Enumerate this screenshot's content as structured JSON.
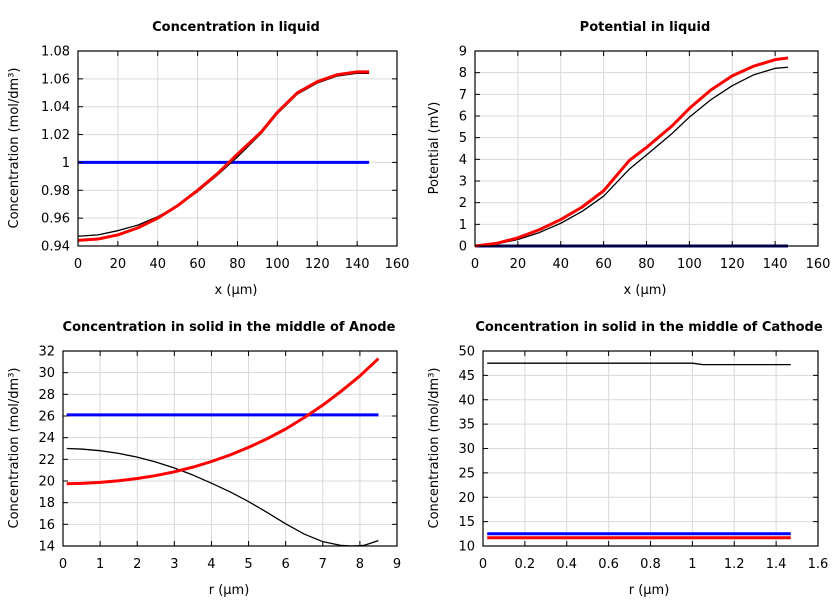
{
  "chart_data": [
    {
      "type": "line",
      "title": "Concentration in liquid",
      "xlabel": "x (µm)",
      "ylabel": "Concentration (mol/dm³)",
      "xlim": [
        0,
        160
      ],
      "ylim": [
        0.94,
        1.08
      ],
      "xticks": [
        0,
        20,
        40,
        60,
        80,
        100,
        120,
        140,
        160
      ],
      "yticks": [
        0.94,
        0.96,
        0.98,
        1,
        1.02,
        1.04,
        1.06,
        1.08
      ],
      "ytick_labels": [
        "0.94",
        "0.96",
        "0.98",
        "1",
        "1.02",
        "1.04",
        "1.06",
        "1.08"
      ],
      "grid": true,
      "series": [
        {
          "color": "#0000ff",
          "width": 3,
          "x": [
            0,
            146
          ],
          "y": [
            1.0,
            1.0
          ]
        },
        {
          "color": "#000000",
          "width": 1.3,
          "x": [
            0,
            10,
            20,
            30,
            40,
            50,
            60,
            70,
            80,
            92,
            100,
            110,
            120,
            130,
            140,
            146
          ],
          "y": [
            0.947,
            0.948,
            0.951,
            0.955,
            0.961,
            0.969,
            0.979,
            0.991,
            1.004,
            1.021,
            1.035,
            1.049,
            1.057,
            1.062,
            1.064,
            1.064
          ]
        },
        {
          "color": "#ff0000",
          "width": 3,
          "x": [
            0,
            10,
            20,
            30,
            40,
            50,
            60,
            70,
            80,
            92,
            100,
            110,
            120,
            130,
            140,
            146
          ],
          "y": [
            0.944,
            0.945,
            0.948,
            0.953,
            0.96,
            0.969,
            0.98,
            0.992,
            1.006,
            1.022,
            1.036,
            1.05,
            1.058,
            1.063,
            1.065,
            1.065
          ]
        }
      ]
    },
    {
      "type": "line",
      "title": "Potential in liquid",
      "xlabel": "x (µm)",
      "ylabel": "Potential (mV)",
      "xlim": [
        0,
        160
      ],
      "ylim": [
        0,
        9
      ],
      "xticks": [
        0,
        20,
        40,
        60,
        80,
        100,
        120,
        140,
        160
      ],
      "yticks": [
        0,
        1,
        2,
        3,
        4,
        5,
        6,
        7,
        8,
        9
      ],
      "ytick_labels": [
        "0",
        "1",
        "2",
        "3",
        "4",
        "5",
        "6",
        "7",
        "8",
        "9"
      ],
      "grid": true,
      "series": [
        {
          "color": "#000080",
          "width": 3,
          "x": [
            0,
            146
          ],
          "y": [
            0,
            0
          ]
        },
        {
          "color": "#000000",
          "width": 1.3,
          "x": [
            0,
            10,
            20,
            30,
            40,
            50,
            60,
            72,
            80,
            92,
            100,
            110,
            120,
            130,
            140,
            146
          ],
          "y": [
            0,
            0.09,
            0.3,
            0.62,
            1.05,
            1.6,
            2.3,
            3.55,
            4.2,
            5.2,
            5.95,
            6.75,
            7.4,
            7.9,
            8.2,
            8.25
          ]
        },
        {
          "color": "#ff0000",
          "width": 3,
          "x": [
            0,
            10,
            20,
            30,
            40,
            50,
            60,
            72,
            80,
            92,
            100,
            110,
            120,
            130,
            140,
            146
          ],
          "y": [
            0,
            0.12,
            0.38,
            0.75,
            1.22,
            1.8,
            2.55,
            3.95,
            4.55,
            5.55,
            6.35,
            7.2,
            7.85,
            8.3,
            8.6,
            8.68
          ]
        }
      ]
    },
    {
      "type": "line",
      "title": "Concentration in solid in the middle of Anode",
      "xlabel": "r (µm)",
      "ylabel": "Concentration (mol/dm³)",
      "xlim": [
        0,
        9
      ],
      "ylim": [
        14,
        32
      ],
      "xticks": [
        0,
        1,
        2,
        3,
        4,
        5,
        6,
        7,
        8,
        9
      ],
      "yticks": [
        14,
        16,
        18,
        20,
        22,
        24,
        26,
        28,
        30,
        32
      ],
      "ytick_labels": [
        "14",
        "16",
        "18",
        "20",
        "22",
        "24",
        "26",
        "28",
        "30",
        "32"
      ],
      "grid": true,
      "series": [
        {
          "color": "#0000ff",
          "width": 3,
          "x": [
            0.1,
            8.5
          ],
          "y": [
            26.1,
            26.1
          ]
        },
        {
          "color": "#000000",
          "width": 1.3,
          "x": [
            0.1,
            0.5,
            1,
            1.5,
            2,
            2.5,
            3,
            3.5,
            4,
            4.5,
            5,
            5.5,
            6,
            6.5,
            7,
            7.5,
            7.8,
            8.1,
            8.5
          ],
          "y": [
            23.0,
            22.95,
            22.8,
            22.55,
            22.2,
            21.75,
            21.2,
            20.55,
            19.8,
            19.0,
            18.1,
            17.1,
            16.05,
            15.1,
            14.4,
            14.05,
            14.0,
            14.05,
            14.5
          ]
        },
        {
          "color": "#ff0000",
          "width": 3,
          "x": [
            0.1,
            0.5,
            1,
            1.5,
            2,
            2.5,
            3,
            3.5,
            4,
            4.5,
            5,
            5.5,
            6,
            6.5,
            7,
            7.5,
            8,
            8.5
          ],
          "y": [
            19.75,
            19.78,
            19.87,
            20.02,
            20.23,
            20.5,
            20.85,
            21.28,
            21.8,
            22.4,
            23.1,
            23.9,
            24.8,
            25.85,
            27.0,
            28.3,
            29.7,
            31.3
          ]
        }
      ]
    },
    {
      "type": "line",
      "title": "Concentration in solid in the middle of Cathode",
      "xlabel": "r (µm)",
      "ylabel": "Concentration (mol/dm³)",
      "xlim": [
        0,
        1.6
      ],
      "ylim": [
        10,
        50
      ],
      "xticks": [
        0,
        0.2,
        0.4,
        0.6,
        0.8,
        1,
        1.2,
        1.4,
        1.6
      ],
      "xtick_labels": [
        "0",
        "0.2",
        "0.4",
        "0.6",
        "0.8",
        "1",
        "1.2",
        "1.4",
        "1.6"
      ],
      "yticks": [
        10,
        15,
        20,
        25,
        30,
        35,
        40,
        45,
        50
      ],
      "ytick_labels": [
        "10",
        "15",
        "20",
        "25",
        "30",
        "35",
        "40",
        "45",
        "50"
      ],
      "grid": true,
      "series": [
        {
          "color": "#000000",
          "width": 1.3,
          "x": [
            0.02,
            1.0,
            1.05,
            1.47
          ],
          "y": [
            47.5,
            47.5,
            47.2,
            47.2
          ]
        },
        {
          "color": "#0000ff",
          "width": 3,
          "x": [
            0.02,
            1.47
          ],
          "y": [
            12.5,
            12.5
          ]
        },
        {
          "color": "#ff0000",
          "width": 3,
          "x": [
            0.02,
            1.47
          ],
          "y": [
            11.7,
            11.7
          ]
        }
      ]
    }
  ]
}
